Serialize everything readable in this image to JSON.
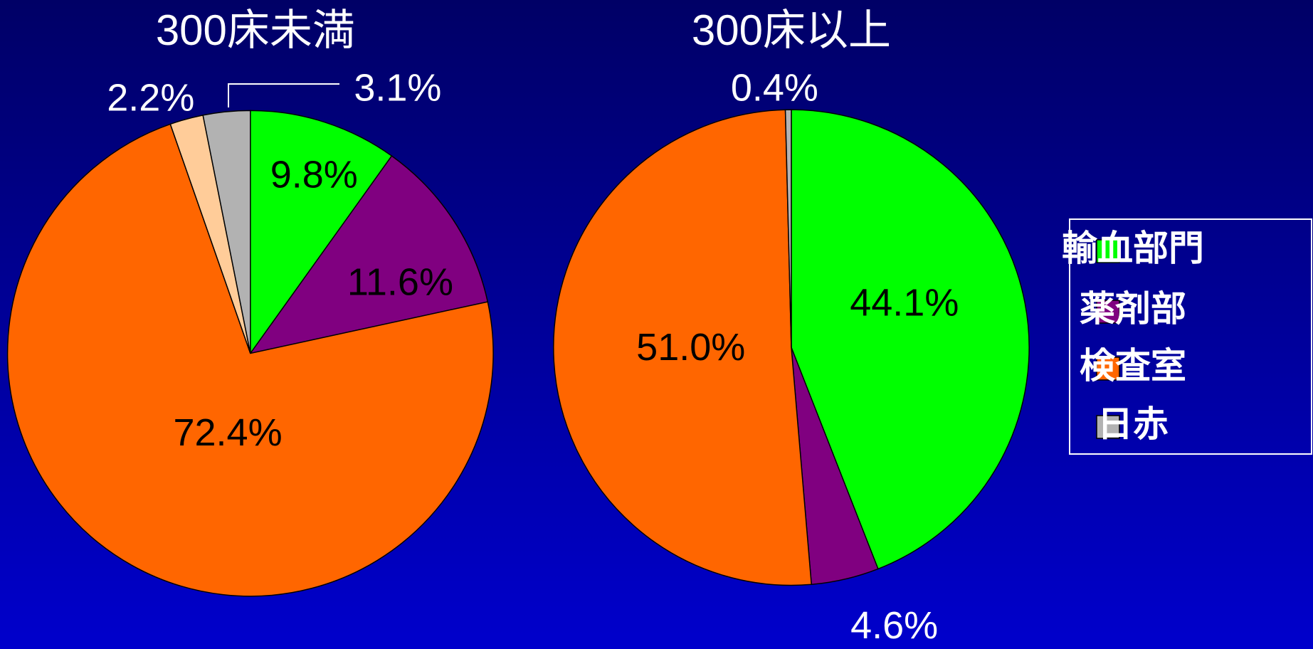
{
  "chart_data": [
    {
      "type": "pie",
      "title": "300床未満",
      "categories": [
        "輸血部門",
        "薬剤部",
        "検査室",
        null,
        "日赤"
      ],
      "values": [
        9.8,
        11.6,
        72.4,
        2.2,
        3.1
      ],
      "value_labels": [
        "9.8%",
        "11.6%",
        "72.4%",
        "2.2%",
        "3.1%"
      ],
      "colors": [
        "#00ff00",
        "#800080",
        "#ff6600",
        "#ffcc99",
        "#b2b2b2"
      ]
    },
    {
      "type": "pie",
      "title": "300床以上",
      "categories": [
        "輸血部門",
        "薬剤部",
        "検査室",
        "日赤"
      ],
      "values": [
        44.1,
        4.6,
        51.0,
        0.4
      ],
      "value_labels": [
        "44.1%",
        "4.6%",
        "51.0%",
        "0.4%"
      ],
      "colors": [
        "#00ff00",
        "#800080",
        "#ff6600",
        "#b2b2b2"
      ],
      "legend": "right"
    }
  ]
}
